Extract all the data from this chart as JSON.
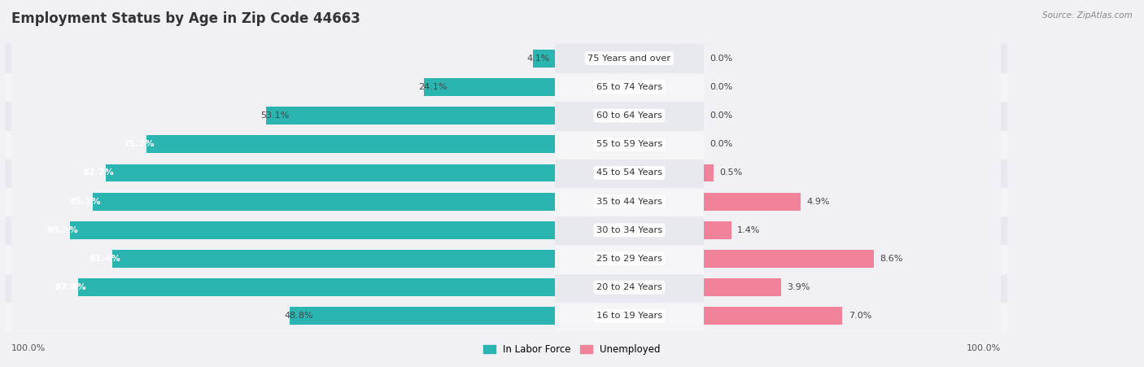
{
  "title": "Employment Status by Age in Zip Code 44663",
  "source": "Source: ZipAtlas.com",
  "categories": [
    "16 to 19 Years",
    "20 to 24 Years",
    "25 to 29 Years",
    "30 to 34 Years",
    "35 to 44 Years",
    "45 to 54 Years",
    "55 to 59 Years",
    "60 to 64 Years",
    "65 to 74 Years",
    "75 Years and over"
  ],
  "labor_force": [
    48.8,
    87.8,
    81.4,
    89.2,
    85.1,
    82.7,
    75.2,
    53.1,
    24.1,
    4.1
  ],
  "unemployed": [
    7.0,
    3.9,
    8.6,
    1.4,
    4.9,
    0.5,
    0.0,
    0.0,
    0.0,
    0.0
  ],
  "labor_force_color": "#2ab5b0",
  "unemployed_color": "#f0829a",
  "background_color": "#f0f0f5",
  "row_bg_even": "#f5f5f8",
  "row_bg_odd": "#e8e8ef",
  "title_fontsize": 12,
  "bar_height": 0.62,
  "max_lf": 100.0,
  "max_un": 15.0,
  "legend_labor_label": "In Labor Force",
  "legend_unemployed_label": "Unemployed",
  "left_axis_label": "100.0%",
  "right_axis_label": "100.0%",
  "lf_threshold_inside": 60.0
}
